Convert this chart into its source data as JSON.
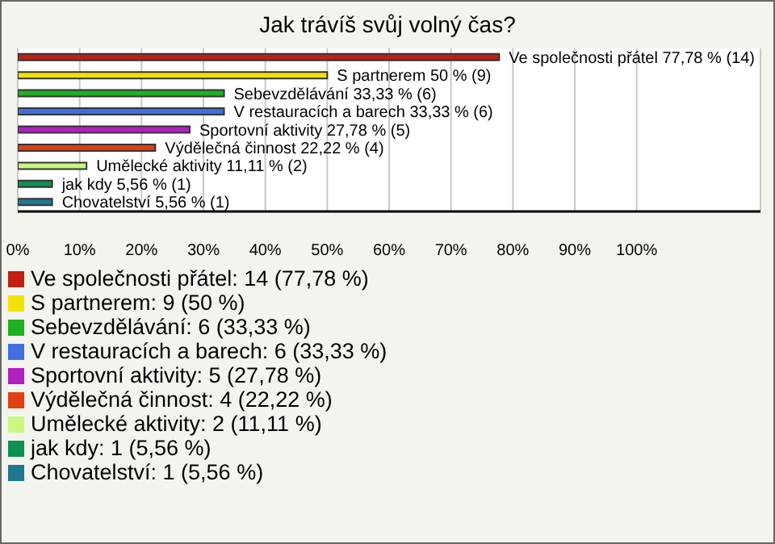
{
  "chart_data": {
    "type": "bar",
    "orientation": "horizontal",
    "stacked": true,
    "title": "Jak trávíš svůj volný čas?",
    "categories": [
      null,
      null,
      null,
      null,
      null,
      null,
      null,
      null,
      null
    ],
    "series": [
      {
        "name": "Ve společnosti přátel: 14 (77,78 %)",
        "color": "#c0200f",
        "values": [
          77.78,
          null,
          null,
          null,
          null,
          null,
          null,
          null,
          null
        ],
        "value_labels": [
          "Ve společnosti přátel 77,78 % (14)",
          null,
          null,
          null,
          null,
          null,
          null,
          null,
          null
        ]
      },
      {
        "name": "S partnerem: 9 (50 %)",
        "color": "#f2e200",
        "values": [
          null,
          50,
          null,
          null,
          null,
          null,
          null,
          null,
          null
        ],
        "value_labels": [
          null,
          "S partnerem 50 % (9)",
          null,
          null,
          null,
          null,
          null,
          null,
          null
        ]
      },
      {
        "name": "Sebevzdělávání: 6 (33,33 %)",
        "color": "#20b020",
        "values": [
          null,
          null,
          33.33,
          null,
          null,
          null,
          null,
          null,
          null
        ],
        "value_labels": [
          null,
          null,
          "Sebevzdělávání 33,33 % (6)",
          null,
          null,
          null,
          null,
          null,
          null
        ]
      },
      {
        "name": "V restauracích a barech: 6 (33,33 %)",
        "color": "#4070e0",
        "values": [
          null,
          null,
          null,
          33.33,
          null,
          null,
          null,
          null,
          null
        ],
        "value_labels": [
          null,
          null,
          null,
          "V restauracích a barech 33,33 % (6)",
          null,
          null,
          null,
          null,
          null
        ]
      },
      {
        "name": "Sportovní aktivity: 5 (27,78 %)",
        "color": "#b020c0",
        "values": [
          null,
          null,
          null,
          null,
          27.78,
          null,
          null,
          null,
          null
        ],
        "value_labels": [
          null,
          null,
          null,
          null,
          "Sportovní aktivity 27,78 % (5)",
          null,
          null,
          null,
          null
        ]
      },
      {
        "name": "Výdělečná činnost: 4 (22,22 %)",
        "color": "#e04010",
        "values": [
          null,
          null,
          null,
          null,
          null,
          22.22,
          null,
          null,
          null
        ],
        "value_labels": [
          null,
          null,
          null,
          null,
          null,
          "Výdělečná činnost 22,22 % (4)",
          null,
          null,
          null
        ]
      },
      {
        "name": "Umělecké aktivity: 2 (11,11 %)",
        "color": "#c8f880",
        "values": [
          null,
          null,
          null,
          null,
          null,
          null,
          11.11,
          null,
          null
        ],
        "value_labels": [
          null,
          null,
          null,
          null,
          null,
          null,
          "Umělecké aktivity 11,11 % (2)",
          null,
          null
        ]
      },
      {
        "name": "jak kdy: 1 (5,56 %)",
        "color": "#109050",
        "values": [
          null,
          null,
          null,
          null,
          null,
          null,
          null,
          5.56,
          null
        ],
        "value_labels": [
          null,
          null,
          null,
          null,
          null,
          null,
          null,
          "jak kdy 5,56 % (1)",
          null
        ]
      },
      {
        "name": "Chovatelství: 1 (5,56 %)",
        "color": "#207890",
        "values": [
          null,
          null,
          null,
          null,
          null,
          null,
          null,
          null,
          5.56
        ],
        "value_labels": [
          null,
          null,
          null,
          null,
          null,
          null,
          null,
          null,
          "Chovatelství 5,56 % (1)"
        ]
      }
    ],
    "xlim": [
      0,
      120
    ],
    "xticks": [
      {
        "value": 0,
        "label": "0%"
      },
      {
        "value": 10,
        "label": "10%"
      },
      {
        "value": 20,
        "label": "20%"
      },
      {
        "value": 30,
        "label": "30%"
      },
      {
        "value": 40,
        "label": "40%"
      },
      {
        "value": 50,
        "label": "50%"
      },
      {
        "value": 60,
        "label": "60%"
      },
      {
        "value": 70,
        "label": "70%"
      },
      {
        "value": 80,
        "label": "80%"
      },
      {
        "value": 90,
        "label": "90%"
      },
      {
        "value": 100,
        "label": "100%"
      }
    ],
    "grid": "x",
    "legend": "bottom",
    "tick_labels": "x"
  }
}
